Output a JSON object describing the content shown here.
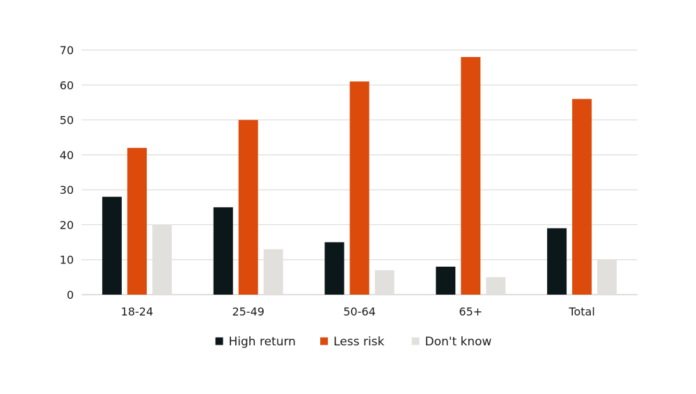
{
  "chart_data": {
    "type": "bar",
    "categories": [
      "18-24",
      "25-49",
      "50-64",
      "65+",
      "Total"
    ],
    "series": [
      {
        "name": "High return",
        "color": "#0b1718",
        "values": [
          28,
          25,
          15,
          8,
          19
        ]
      },
      {
        "name": "Less risk",
        "color": "#dc4a0c",
        "values": [
          42,
          50,
          61,
          68,
          56
        ]
      },
      {
        "name": "Don't know",
        "color": "#e2e0dd",
        "values": [
          20,
          13,
          7,
          5,
          10
        ]
      }
    ],
    "ylim": [
      0,
      70
    ],
    "yticks": [
      0,
      10,
      20,
      30,
      40,
      50,
      60,
      70
    ],
    "grid": true,
    "legend_position": "bottom"
  }
}
